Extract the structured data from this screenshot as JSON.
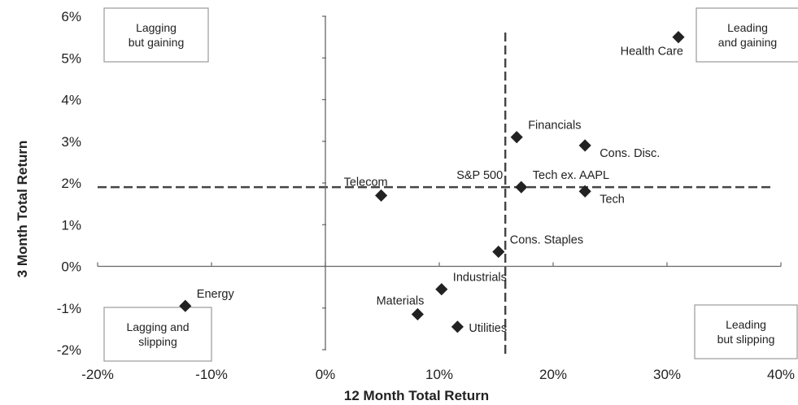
{
  "chart_data": {
    "type": "scatter",
    "xlabel": "12 Month Total Return",
    "ylabel": "3 Month Total Return",
    "xlim": [
      -0.2,
      0.4
    ],
    "ylim": [
      -0.02,
      0.06
    ],
    "x_ticks": [
      {
        "value": -0.2,
        "label": "-20%"
      },
      {
        "value": -0.1,
        "label": "-10%"
      },
      {
        "value": 0.0,
        "label": "0%"
      },
      {
        "value": 0.1,
        "label": "10%"
      },
      {
        "value": 0.2,
        "label": "20%"
      },
      {
        "value": 0.3,
        "label": "30%"
      },
      {
        "value": 0.4,
        "label": "40%"
      }
    ],
    "y_ticks": [
      {
        "value": 0.06,
        "label": "6%"
      },
      {
        "value": 0.05,
        "label": "5%"
      },
      {
        "value": 0.04,
        "label": "4%"
      },
      {
        "value": 0.03,
        "label": "3%"
      },
      {
        "value": 0.02,
        "label": "2%"
      },
      {
        "value": 0.01,
        "label": "1%"
      },
      {
        "value": 0.0,
        "label": "0%"
      },
      {
        "value": -0.01,
        "label": "-1%"
      },
      {
        "value": -0.02,
        "label": "-2%"
      }
    ],
    "reference_lines": {
      "label": "S&P 500",
      "x": 0.158,
      "y": 0.019
    },
    "points": [
      {
        "label": "Health Care",
        "x": 0.31,
        "y": 0.055,
        "label_pos": "lower-left"
      },
      {
        "label": "Financials",
        "x": 0.168,
        "y": 0.031,
        "label_pos": "upper-right"
      },
      {
        "label": "Cons. Disc.",
        "x": 0.228,
        "y": 0.029,
        "label_pos": "lower-right"
      },
      {
        "label": "Tech ex. AAPL",
        "x": 0.172,
        "y": 0.019,
        "label_pos": "upper-right"
      },
      {
        "label": "Tech",
        "x": 0.228,
        "y": 0.018,
        "label_pos": "lower-right"
      },
      {
        "label": "Telecom",
        "x": 0.049,
        "y": 0.017,
        "label_pos": "upper-left"
      },
      {
        "label": "Cons. Staples",
        "x": 0.152,
        "y": 0.0035,
        "label_pos": "upper-right"
      },
      {
        "label": "Industrials",
        "x": 0.102,
        "y": -0.0055,
        "label_pos": "upper-right"
      },
      {
        "label": "Materials",
        "x": 0.081,
        "y": -0.0115,
        "label_pos": "upper-left"
      },
      {
        "label": "Utilities",
        "x": 0.116,
        "y": -0.0145,
        "label_pos": "right"
      },
      {
        "label": "Energy",
        "x": -0.123,
        "y": -0.0095,
        "label_pos": "upper-right"
      }
    ],
    "quadrant_labels": [
      {
        "id": "lagging-but-gaining",
        "position": "top-left",
        "lines": [
          "Lagging",
          "but gaining"
        ]
      },
      {
        "id": "leading-and-gaining",
        "position": "top-right",
        "lines": [
          "Leading",
          "and gaining"
        ]
      },
      {
        "id": "lagging-and-slipping",
        "position": "bottom-left",
        "lines": [
          "Lagging and",
          "slipping"
        ]
      },
      {
        "id": "leading-but-slipping",
        "position": "bottom-right",
        "lines": [
          "Leading",
          "but slipping"
        ]
      }
    ],
    "grid": false,
    "legend": "none"
  }
}
